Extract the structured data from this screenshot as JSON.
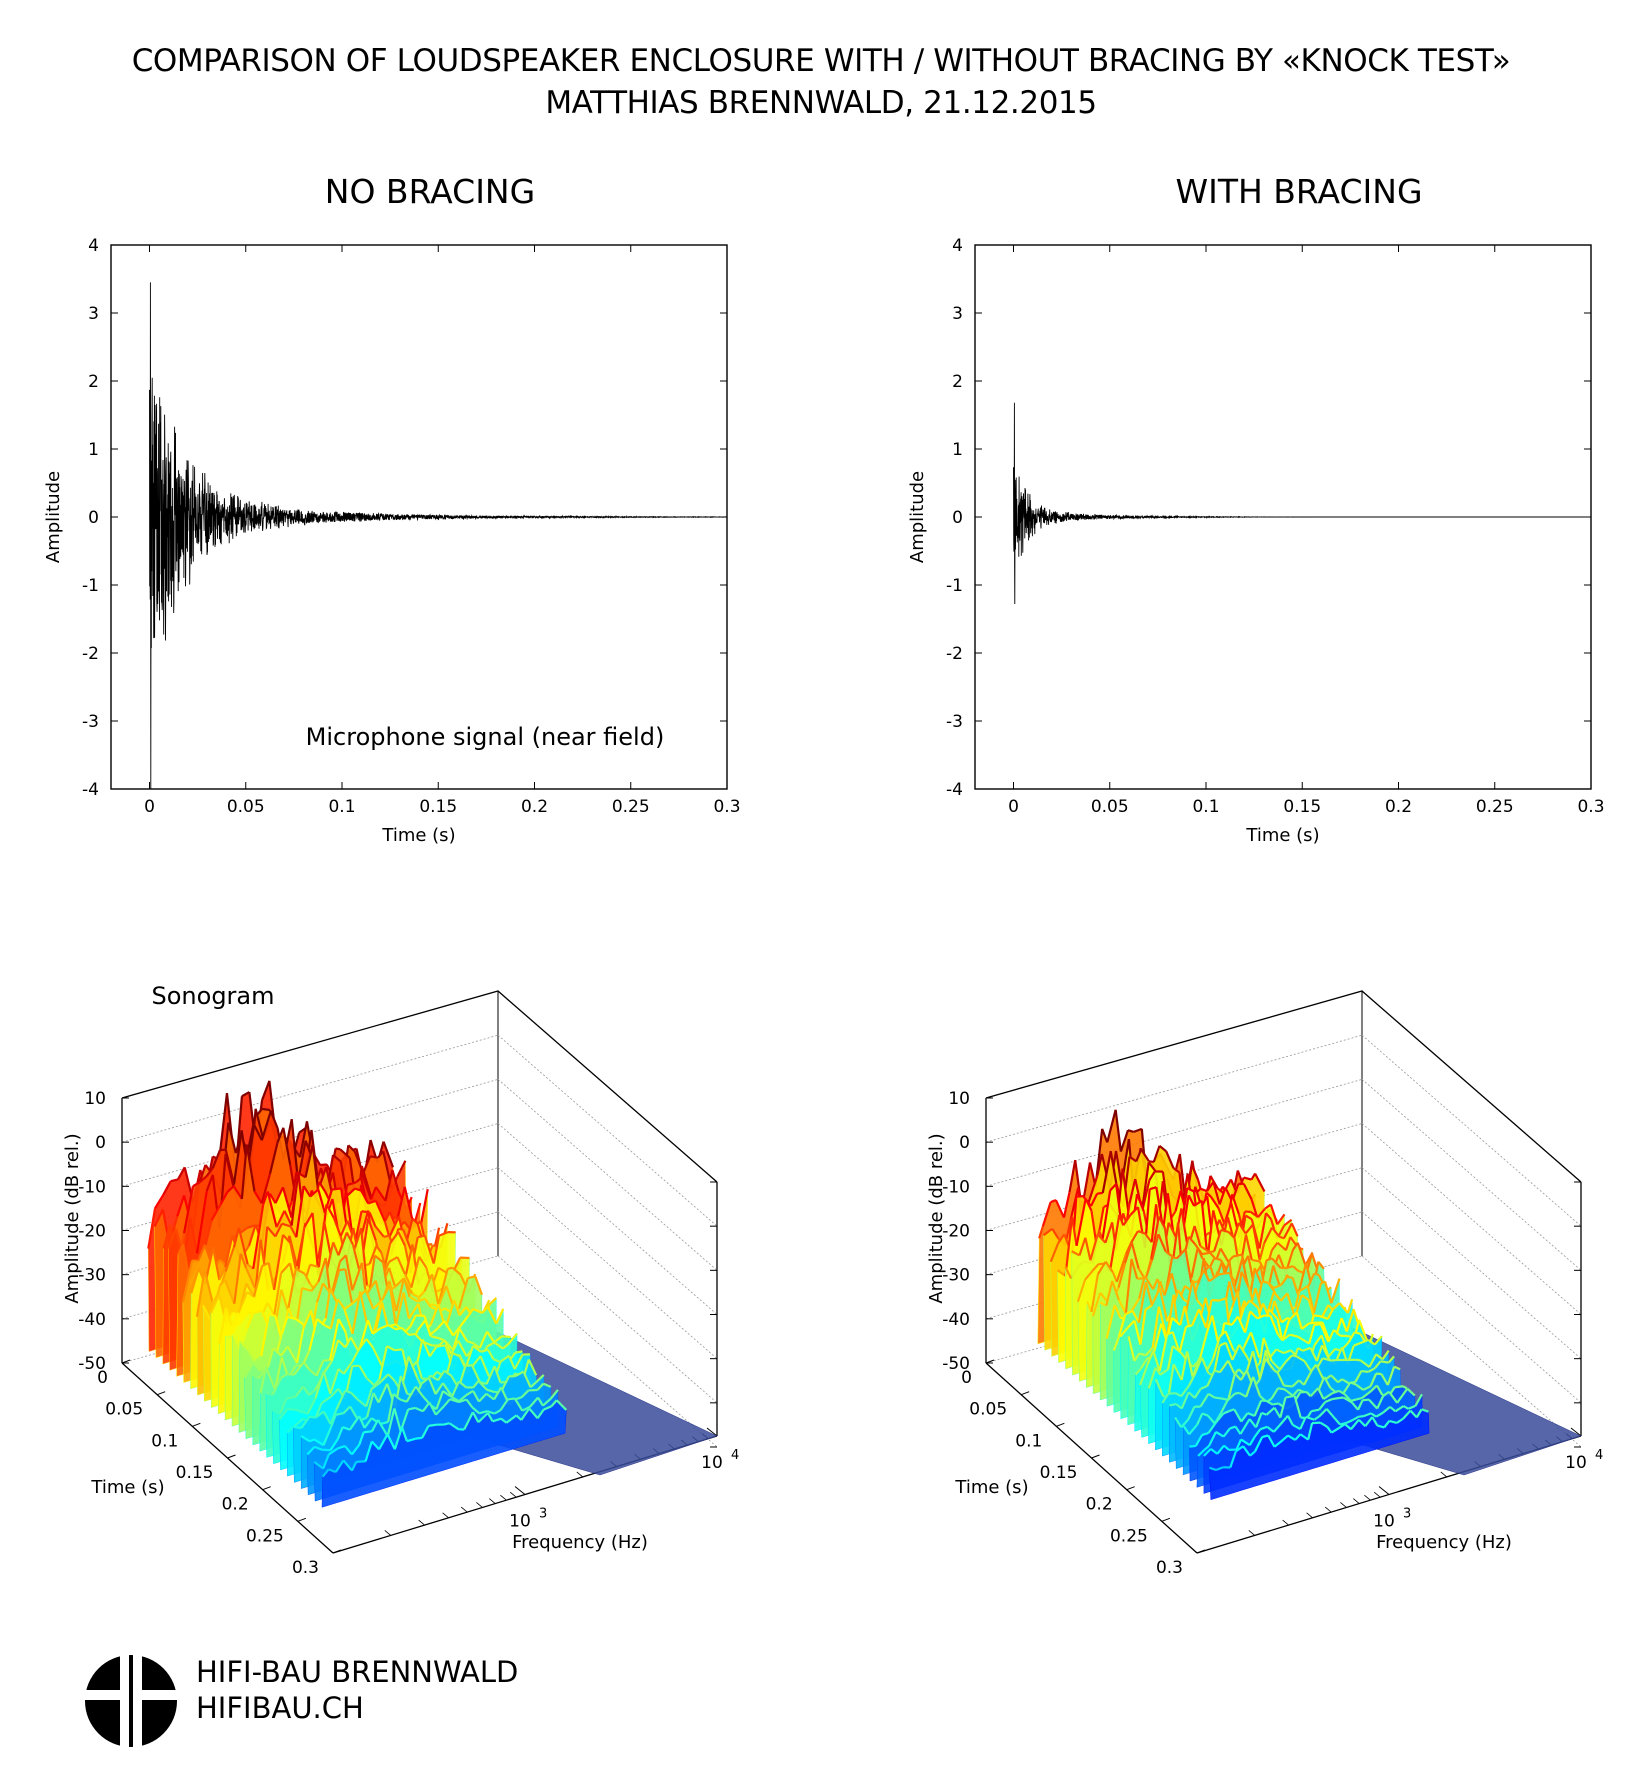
{
  "header": {
    "title_line1": "COMPARISON OF LOUDSPEAKER ENCLOSURE WITH / WITHOUT BRACING BY «KNOCK TEST»",
    "title_line2": "MATTHIAS BRENNWALD, 21.12.2015"
  },
  "panels": {
    "left_title": "NO BRACING",
    "right_title": "WITH BRACING"
  },
  "annotations": {
    "microphone": "Microphone signal (near field)",
    "sonogram": "Sonogram"
  },
  "footer": {
    "company": "HIFI-BAU BRENNWALD",
    "website": "HIFIBAU.CH"
  },
  "colors": {
    "line": "#000000",
    "surface_colormap": "jet",
    "floor": "#3a4a9a"
  },
  "chart_data": [
    {
      "type": "line",
      "panel": "NO BRACING",
      "xlabel": "Time (s)",
      "ylabel": "Amplitude",
      "xlim": [
        -0.02,
        0.3
      ],
      "ylim": [
        -4,
        4
      ],
      "xticks": [
        "0",
        "0.05",
        "0.1",
        "0.15",
        "0.2",
        "0.25",
        "0.3"
      ],
      "yticks": [
        "-4",
        "-3",
        "-2",
        "-1",
        "0",
        "1",
        "2",
        "3",
        "4"
      ],
      "signal": {
        "peak_max": 3.45,
        "peak_min": -4.0,
        "decay_time_constant_s": 0.018,
        "end_s": 0.3
      }
    },
    {
      "type": "line",
      "panel": "WITH BRACING",
      "xlabel": "Time (s)",
      "ylabel": "Amplitude",
      "xlim": [
        -0.02,
        0.3
      ],
      "ylim": [
        -4,
        4
      ],
      "xticks": [
        "0",
        "0.05",
        "0.1",
        "0.15",
        "0.2",
        "0.25",
        "0.3"
      ],
      "yticks": [
        "-4",
        "-3",
        "-2",
        "-1",
        "0",
        "1",
        "2",
        "3",
        "4"
      ],
      "signal": {
        "peak_max": 1.68,
        "peak_min": -1.28,
        "decay_time_constant_s": 0.007,
        "end_s": 0.3
      }
    },
    {
      "type": "heatmap",
      "panel": "NO BRACING",
      "view": "3d-surface",
      "xlabel": "Frequency (Hz)",
      "ylabel": "Time (s)",
      "zlabel": "Amplitude (dB rel.)",
      "zlim": [
        -50,
        10
      ],
      "zticks": [
        "10",
        "0",
        "-10",
        "-20",
        "-30",
        "-40",
        "-50"
      ],
      "time_ticks": [
        "0",
        "0.05",
        "0.1",
        "0.15",
        "0.2",
        "0.25",
        "0.3"
      ],
      "freq_scale": "log",
      "freq_ticks": [
        "10",
        "10"
      ],
      "freq_tick_exponents": [
        "3",
        "4"
      ],
      "peak_level_db": 8
    },
    {
      "type": "heatmap",
      "panel": "WITH BRACING",
      "view": "3d-surface",
      "xlabel": "Frequency (Hz)",
      "ylabel": "Time (s)",
      "zlabel": "Amplitude (dB rel.)",
      "zlim": [
        -50,
        10
      ],
      "zticks": [
        "10",
        "0",
        "-10",
        "-20",
        "-30",
        "-40",
        "-50"
      ],
      "time_ticks": [
        "0",
        "0.05",
        "0.1",
        "0.15",
        "0.2",
        "0.25",
        "0.3"
      ],
      "freq_scale": "log",
      "freq_ticks": [
        "10",
        "10"
      ],
      "freq_tick_exponents": [
        "3",
        "4"
      ],
      "peak_level_db": -2
    }
  ]
}
